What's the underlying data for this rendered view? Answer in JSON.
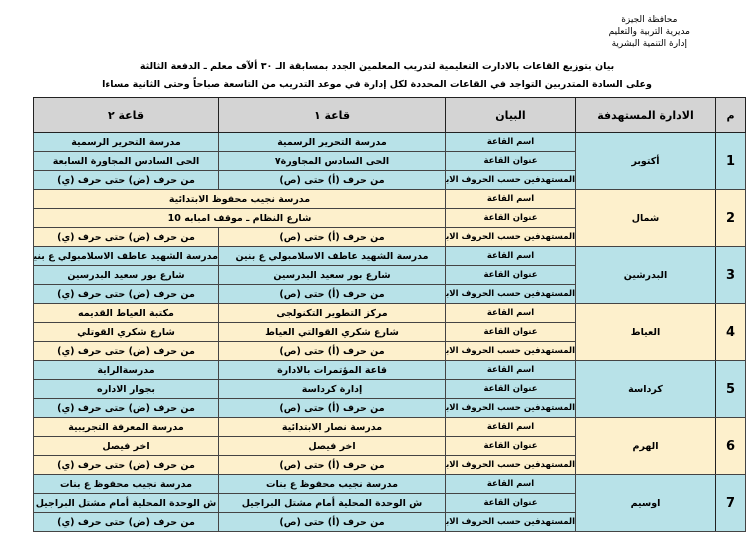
{
  "header": {
    "lines": [
      "محافظة الجيزة",
      "مديرية التربية والتعليم",
      "إدارة التنمية البشرية"
    ]
  },
  "title": "بيان بتوزيع القاعات بالادارت التعليمية لتدريب المعلمين الجدد بمسابقة الـ ٣٠ ألآف معلم ـ الدفعة الثالثة",
  "subtitle": "وعلى السادة المتدربين التواجد في القاعات المحددة لكل إدارة في موعد التدريب من التاسعة صباحاً وحتى الثانية مساءا",
  "columns": [
    "م",
    "الادارة المستهدفة",
    "البيان",
    "قاعة ١",
    "قاعة ٢"
  ],
  "labels": [
    "اسم القاعة",
    "عنوان القاعة",
    "المستهدفين حسب الحروف الابجدية"
  ],
  "row_colors": {
    "blue": "#b8e2e8",
    "beige": "#fdf0cc"
  },
  "rows": [
    {
      "num": "1",
      "idara": "أكتوبر",
      "color": "blue",
      "hall1": [
        "مدرسة التحرير الرسمية",
        "الحى السادس المجاورة٧",
        "من حرف (أ) حتى (ص)"
      ],
      "hall2": [
        "مدرسة التحرير الرسمية",
        "الحى السادس  المجاورة السابعة",
        "من حرف (ض) حتى حرف (ي)"
      ]
    },
    {
      "num": "2",
      "idara": "شمال",
      "color": "beige",
      "merged": [
        "مدرسة نجيب محفوظ الابتدائية",
        "شارع النظام ـ موقف امبابه 10"
      ],
      "hall1": [
        "",
        "",
        "من حرف (أ) حتى (ص)"
      ],
      "hall2": [
        "",
        "",
        "من حرف (ض) حتى حرف (ي)"
      ]
    },
    {
      "num": "3",
      "idara": "البدرشين",
      "color": "blue",
      "hall1": [
        "مدرسة الشهيد عاطف الاسلامبولي ع بنين",
        "شارع بور سعيد البدرسين",
        "من حرف (أ) حتى (ص)"
      ],
      "hall2": [
        "مدرسة الشهيد عاطف الاسلامبولي ع بنين",
        "شارع بور سعيد البدرسين",
        "من حرف (ض) حتى حرف (ي)"
      ]
    },
    {
      "num": "4",
      "idara": "العياط",
      "color": "beige",
      "hall1": [
        "مركز التطوير التكنولجى",
        "شارع شكري القوالتي العياط",
        "من حرف (أ) حتى (ص)"
      ],
      "hall2": [
        "مكتبة العياط القديمه",
        "شارع شكري القوتلي",
        "من حرف (ض) حتى حرف (ي)"
      ]
    },
    {
      "num": "5",
      "idara": "كرداسة",
      "color": "blue",
      "hall1": [
        "قاعة المؤتمرات بالادارة",
        "إدارة كرداسة",
        "من حرف (أ) حتى (ص)"
      ],
      "hall2": [
        "مدرسةالراية",
        "بجوار الاداره",
        "من حرف (ض) حتى حرف (ي)"
      ]
    },
    {
      "num": "6",
      "idara": "الهرم",
      "color": "beige",
      "hall1": [
        "مدرسة نصار الابتدائية",
        "اخر فيصل",
        "من حرف (أ) حتى (ص)"
      ],
      "hall2": [
        "مدرسة المعرفة  التجريبية",
        "اخر فيصل",
        "من حرف (ض) حتى حرف (ي)"
      ]
    },
    {
      "num": "7",
      "idara": "اوسيم",
      "color": "blue",
      "hall1": [
        "مدرسة نجيب محفوظ ع بنات",
        "ش الوحدة المحلية أمام مشتل البراجيل",
        "من حرف (أ) حتى (ص)"
      ],
      "hall2": [
        "مدرسة نجيب محفوظ ع بنات",
        "ش الوحدة المحلية أمام مشتل البراجيل",
        "من حرف (ض) حتى حرف (ي)"
      ]
    }
  ]
}
